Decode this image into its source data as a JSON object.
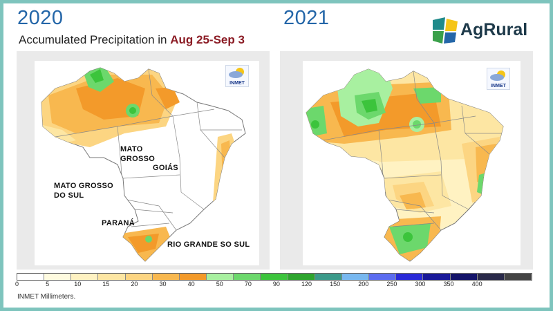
{
  "header": {
    "year_left": "2020",
    "year_right": "2021",
    "subtitle_prefix": "Accumulated Precipitation in ",
    "subtitle_highlight": "Aug 25-Sep 3"
  },
  "logo": {
    "name": "AgRural"
  },
  "maps": {
    "left": {
      "badge": "INMET",
      "labels": {
        "mato_grosso": "MATO\nGROSSO",
        "goias": "GOIÁS",
        "mato_grosso_do_sul": "MATO GROSSO\nDO SUL",
        "parana": "PARANÁ",
        "rio_grande_do_sul": "RIO GRANDE SO SUL"
      }
    },
    "right": {
      "badge": "INMET"
    }
  },
  "legend": {
    "ticks": [
      "0",
      "5",
      "10",
      "15",
      "20",
      "30",
      "40",
      "50",
      "70",
      "90",
      "120",
      "150",
      "200",
      "250",
      "300",
      "350",
      "400"
    ],
    "colors": [
      "#ffffff",
      "#fffbe0",
      "#fff2c2",
      "#fde6a3",
      "#fcd582",
      "#f8b84f",
      "#f39a2a",
      "#a8f0a0",
      "#6cd86c",
      "#3cc43c",
      "#2ea52e",
      "#3b9a8a",
      "#78b8f0",
      "#5b6cf0",
      "#2a2ad8",
      "#1a1a9a",
      "#14146a",
      "#2a2a4a",
      "#444444"
    ],
    "unit": "INMET  Millimeters."
  }
}
